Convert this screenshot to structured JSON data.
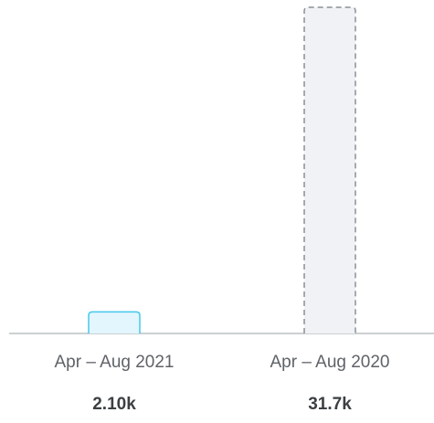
{
  "chart_data": {
    "type": "bar",
    "categories": [
      "Apr – Aug 2021",
      "Apr – Aug 2020"
    ],
    "values": [
      2100,
      31700
    ],
    "value_labels": [
      "2.10k",
      "31.7k"
    ],
    "ylim": [
      0,
      31700
    ],
    "grid": false,
    "styles": [
      {
        "fill": "#e3f6fd",
        "stroke": "#45c8ee",
        "dashed": false
      },
      {
        "fill": "#f0f2f5",
        "stroke": "#8a8f96",
        "dashed": true
      }
    ],
    "axis_color": "#9aa0a6"
  }
}
